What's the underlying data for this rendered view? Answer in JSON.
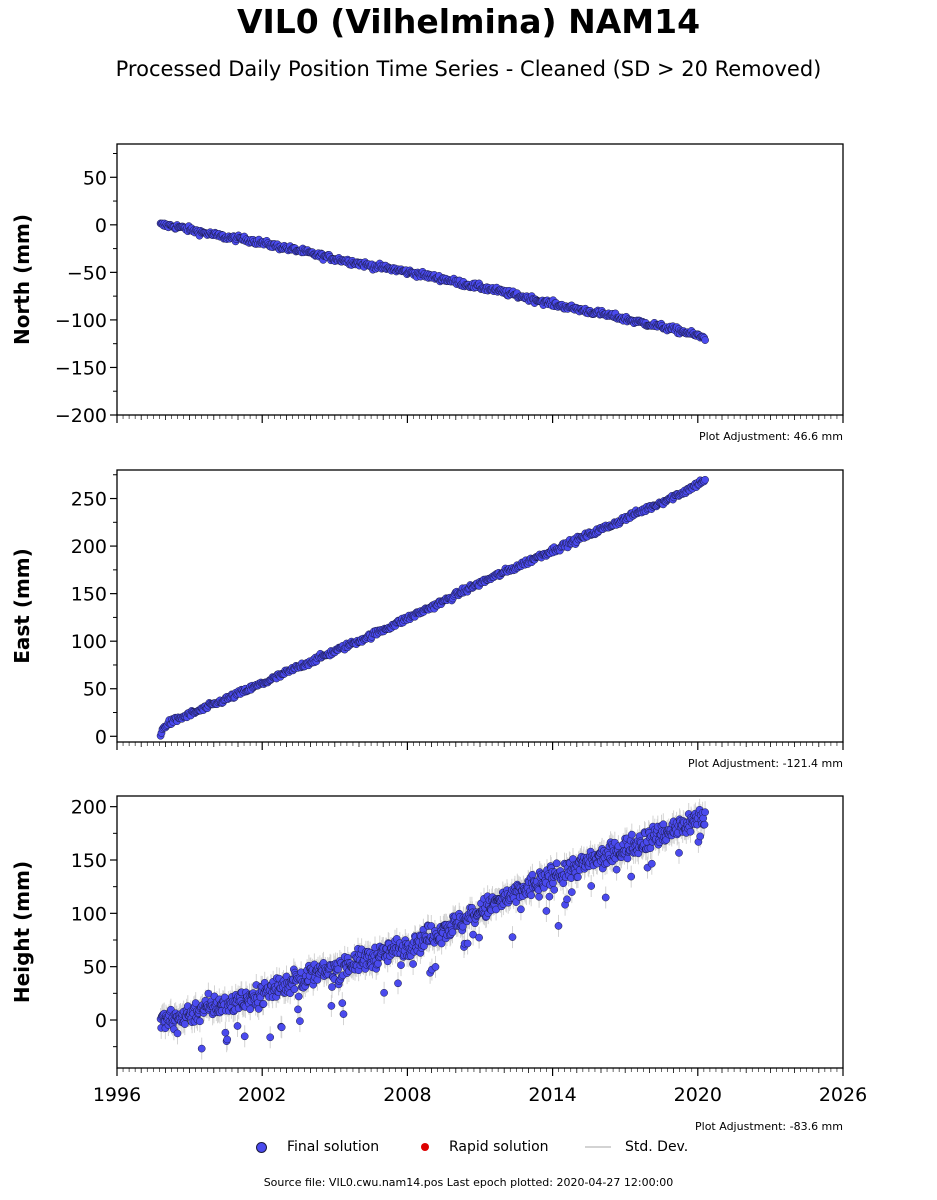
{
  "header": {
    "title": "VIL0 (Vilhelmina) NAM14",
    "subtitle": "Processed Daily Position Time Series - Cleaned (SD > 20 Removed)"
  },
  "colors": {
    "final": "#4a4aee",
    "final_edge": "#1a1a40",
    "rapid": "#dd0000",
    "stddev": "#d3d3d3"
  },
  "chart_data": [
    {
      "type": "scatter",
      "ylabel": "North (mm)",
      "xlim": [
        1996,
        2026
      ],
      "ylim": [
        -200,
        85
      ],
      "yticks": [
        -200,
        -150,
        -100,
        -50,
        0,
        50
      ],
      "show_xticklabels": false,
      "adjustment": "Plot Adjustment: 46.6 mm",
      "series": [
        {
          "name": "Final solution",
          "points": [
            [
              1997.8,
              0
            ],
            [
              1998.5,
              -2
            ],
            [
              1999.5,
              -8
            ],
            [
              2000.5,
              -13
            ],
            [
              2001.5,
              -16
            ],
            [
              2002.5,
              -22
            ],
            [
              2003.5,
              -27
            ],
            [
              2004.5,
              -33
            ],
            [
              2005.5,
              -38
            ],
            [
              2006.5,
              -43
            ],
            [
              2007.5,
              -47
            ],
            [
              2008.5,
              -52
            ],
            [
              2009.5,
              -57
            ],
            [
              2010.5,
              -63
            ],
            [
              2011.5,
              -68
            ],
            [
              2012.5,
              -74
            ],
            [
              2013.5,
              -80
            ],
            [
              2014.5,
              -86
            ],
            [
              2015.5,
              -91
            ],
            [
              2016.5,
              -96
            ],
            [
              2017.5,
              -102
            ],
            [
              2018.5,
              -107
            ],
            [
              2019.5,
              -113
            ],
            [
              2020.3,
              -119
            ]
          ]
        }
      ]
    },
    {
      "type": "scatter",
      "ylabel": "East (mm)",
      "xlim": [
        1996,
        2026
      ],
      "ylim": [
        -6,
        280
      ],
      "yticks": [
        0,
        50,
        100,
        150,
        200,
        250
      ],
      "show_xticklabels": false,
      "adjustment": "Plot Adjustment: -121.4 mm",
      "series": [
        {
          "name": "Final solution",
          "points": [
            [
              1997.8,
              2
            ],
            [
              1998.0,
              12
            ],
            [
              1998.5,
              18
            ],
            [
              1999.5,
              28
            ],
            [
              2000.5,
              39
            ],
            [
              2001.5,
              50
            ],
            [
              2002.5,
              61
            ],
            [
              2003.5,
              73
            ],
            [
              2004.5,
              84
            ],
            [
              2005.5,
              95
            ],
            [
              2006.5,
              106
            ],
            [
              2007.5,
              118
            ],
            [
              2008.5,
              130
            ],
            [
              2009.5,
              142
            ],
            [
              2010.5,
              155
            ],
            [
              2011.5,
              167
            ],
            [
              2012.5,
              178
            ],
            [
              2013.5,
              190
            ],
            [
              2014.5,
              201
            ],
            [
              2015.5,
              212
            ],
            [
              2016.5,
              223
            ],
            [
              2017.5,
              235
            ],
            [
              2018.5,
              246
            ],
            [
              2019.5,
              258
            ],
            [
              2020.3,
              270
            ]
          ]
        }
      ]
    },
    {
      "type": "scatter",
      "ylabel": "Height (mm)",
      "xlim": [
        1996,
        2026
      ],
      "ylim": [
        -45,
        210
      ],
      "yticks": [
        0,
        50,
        100,
        150,
        200
      ],
      "xticks": [
        1996,
        2002,
        2008,
        2014,
        2020,
        2026
      ],
      "show_xticklabels": true,
      "adjustment": "Plot Adjustment: -83.6 mm",
      "series": [
        {
          "name": "Final solution",
          "points": [
            [
              1997.8,
              -2
            ],
            [
              1998.5,
              2
            ],
            [
              1999.5,
              10
            ],
            [
              2000.5,
              15
            ],
            [
              2001.5,
              20
            ],
            [
              2002.5,
              30
            ],
            [
              2003.5,
              38
            ],
            [
              2004.5,
              45
            ],
            [
              2005.5,
              52
            ],
            [
              2006.5,
              58
            ],
            [
              2007.5,
              66
            ],
            [
              2008.5,
              74
            ],
            [
              2009.5,
              85
            ],
            [
              2010.5,
              95
            ],
            [
              2011.5,
              108
            ],
            [
              2012.5,
              118
            ],
            [
              2013.5,
              130
            ],
            [
              2014.5,
              140
            ],
            [
              2015.5,
              148
            ],
            [
              2016.5,
              156
            ],
            [
              2017.5,
              166
            ],
            [
              2018.5,
              174
            ],
            [
              2019.5,
              183
            ],
            [
              2020.3,
              192
            ]
          ]
        }
      ]
    }
  ],
  "legend": {
    "items": [
      "Final solution",
      "Rapid solution",
      "Std. Dev."
    ]
  },
  "footer": {
    "text": "Source file: VIL0.cwu.nam14.pos  Last epoch plotted: 2020-04-27 12:00:00"
  }
}
